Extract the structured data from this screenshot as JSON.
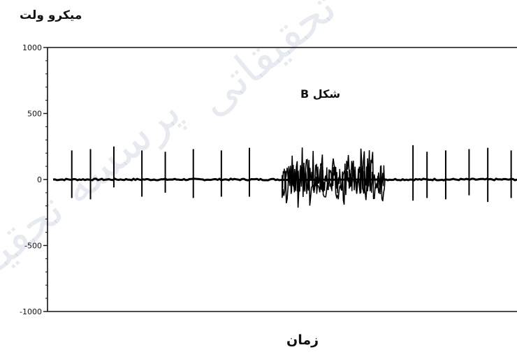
{
  "chart_data": {
    "type": "line",
    "title": "شکل B",
    "xlabel": "زمان",
    "ylabel": "میکرو ولت",
    "ylim": [
      -1000,
      1000
    ],
    "yticks": [
      1000,
      500,
      0,
      -500,
      -1000
    ],
    "yticklabels": [
      "1000",
      "500",
      "0",
      "-500",
      "-1000"
    ],
    "grid": false,
    "series": [
      {
        "spike_times": [
          0.04,
          0.08,
          0.13,
          0.19,
          0.24,
          0.3,
          0.36,
          0.42,
          0.77,
          0.8,
          0.84,
          0.89,
          0.93,
          0.98
        ],
        "spike_peaks": [
          220,
          230,
          250,
          220,
          210,
          230,
          220,
          240,
          260,
          210,
          220,
          230,
          240,
          220
        ],
        "spike_troughs": [
          -140,
          -150,
          -60,
          -130,
          -100,
          -140,
          -130,
          -130,
          -160,
          -140,
          -150,
          -120,
          -170,
          -140
        ],
        "burst_start": 0.49,
        "burst_end": 0.71,
        "burst_amplitude": [
          -230,
          300
        ]
      }
    ]
  },
  "watermark": "پرسسه تحقیقاتی"
}
